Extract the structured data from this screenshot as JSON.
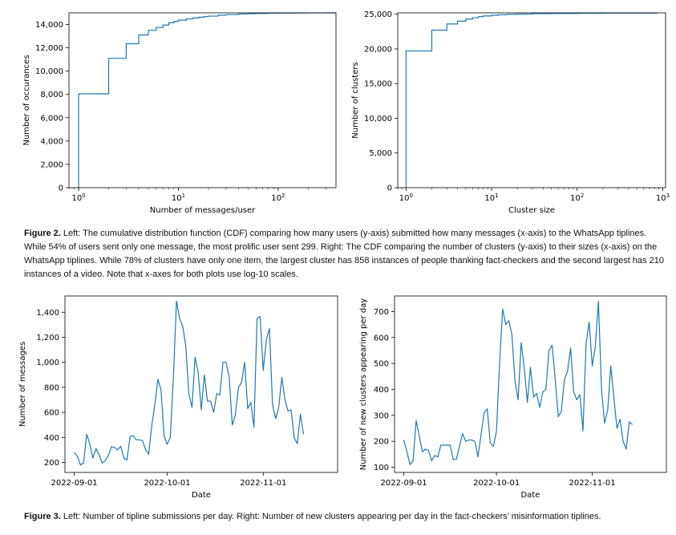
{
  "figure2": {
    "label": "Figure 2.",
    "text": " Left: The cumulative distribution function (CDF) comparing how many users (y-axis) submitted how many messages (x-axis) to the WhatsApp tiplines. While 54% of users sent only one message, the most prolific user sent 299. Right: The CDF comparing the number of clusters (y-axis) to their sizes (x-axis) on the WhatsApp tiplines. While 78% of clusters have only one item, the largest cluster has 858 instances of people thanking fact-checkers and the second largest has 210 instances of a video. Note that x-axes for both plots use log-10 scales."
  },
  "figure3": {
    "label": "Figure 3.",
    "text": " Left: Number of tipline submissions per day. Right: Number of new clusters appearing per day in the fact-checkers’ misinformation tiplines."
  },
  "chart_data": [
    {
      "id": "users-cdf",
      "type": "line",
      "step": true,
      "title": "",
      "xlabel": "Number of messages/user",
      "ylabel": "Number of occurances",
      "xscale": "log",
      "xlim": [
        0.8,
        380
      ],
      "ylim": [
        0,
        15000
      ],
      "x_ticks": [
        1,
        10,
        100
      ],
      "x_tick_labels": [
        "10^0",
        "10^1",
        "10^2"
      ],
      "y_ticks": [
        0,
        2000,
        4000,
        6000,
        8000,
        10000,
        12000,
        14000
      ],
      "y_tick_labels": [
        "0",
        "2,000",
        "4,000",
        "6,000",
        "8,000",
        "10,000",
        "12,000",
        "14,000"
      ],
      "x": [
        1,
        2,
        3,
        4,
        5,
        6,
        7,
        8,
        9,
        10,
        12,
        14,
        16,
        18,
        20,
        25,
        30,
        40,
        50,
        60,
        80,
        100,
        150,
        200,
        299,
        380
      ],
      "y": [
        8050,
        11100,
        12350,
        13100,
        13500,
        13750,
        13950,
        14150,
        14270,
        14370,
        14480,
        14560,
        14620,
        14680,
        14720,
        14800,
        14850,
        14900,
        14930,
        14950,
        14970,
        14985,
        14993,
        14997,
        15000,
        15000
      ]
    },
    {
      "id": "clusters-cdf",
      "type": "line",
      "step": true,
      "title": "",
      "xlabel": "Cluster size",
      "ylabel": "Number of clusters",
      "xscale": "log",
      "xlim": [
        0.8,
        1080
      ],
      "ylim": [
        0,
        25200
      ],
      "x_ticks": [
        1,
        10,
        100,
        1000
      ],
      "x_tick_labels": [
        "10^0",
        "10^1",
        "10^2",
        "10^3"
      ],
      "y_ticks": [
        0,
        5000,
        10000,
        15000,
        20000,
        25000
      ],
      "y_tick_labels": [
        "0",
        "5,000",
        "10,000",
        "15,000",
        "20,000",
        "25,000"
      ],
      "x": [
        1,
        2,
        3,
        4,
        5,
        6,
        7,
        8,
        10,
        12,
        15,
        20,
        30,
        50,
        100,
        210,
        858
      ],
      "y": [
        19700,
        22700,
        23600,
        24000,
        24300,
        24500,
        24650,
        24750,
        24850,
        24920,
        24980,
        25030,
        25080,
        25110,
        25140,
        25170,
        25200
      ]
    },
    {
      "id": "submissions-per-day",
      "type": "line",
      "title": "",
      "xlabel": "Date",
      "ylabel": "Number of messages",
      "x_start": "2022-08-29",
      "x_end": "2022-11-25",
      "ylim": [
        120,
        1530
      ],
      "x_ticks": [
        "2022-09-01",
        "2022-10-01",
        "2022-11-01"
      ],
      "y_ticks": [
        200,
        400,
        600,
        800,
        1000,
        1200,
        1400
      ],
      "y_tick_labels": [
        "200",
        "400",
        "600",
        "800",
        "1,000",
        "1,200",
        "1,400"
      ],
      "values": [
        280,
        250,
        180,
        195,
        425,
        350,
        235,
        310,
        265,
        195,
        215,
        255,
        325,
        320,
        300,
        330,
        235,
        220,
        405,
        415,
        380,
        380,
        375,
        305,
        265,
        490,
        660,
        865,
        780,
        410,
        345,
        400,
        880,
        1490,
        1350,
        1290,
        1130,
        745,
        640,
        1040,
        920,
        620,
        900,
        690,
        690,
        600,
        750,
        740,
        1000,
        1000,
        880,
        500,
        580,
        800,
        840,
        1000,
        630,
        680,
        480,
        1350,
        1365,
        935,
        1180,
        1270,
        660,
        550,
        640,
        880,
        700,
        610,
        620,
        395,
        350,
        585,
        425
      ]
    },
    {
      "id": "new-clusters-per-day",
      "type": "line",
      "title": "",
      "xlabel": "Date",
      "ylabel": "Number of new clusters appearing per day",
      "x_start": "2022-08-29",
      "x_end": "2022-11-25",
      "ylim": [
        80,
        760
      ],
      "x_ticks": [
        "2022-09-01",
        "2022-10-01",
        "2022-11-01"
      ],
      "y_ticks": [
        100,
        200,
        300,
        400,
        500,
        600,
        700
      ],
      "y_tick_labels": [
        "100",
        "200",
        "300",
        "400",
        "500",
        "600",
        "700"
      ],
      "values": [
        205,
        160,
        110,
        125,
        280,
        220,
        160,
        170,
        165,
        125,
        145,
        140,
        185,
        185,
        185,
        185,
        130,
        130,
        180,
        230,
        200,
        205,
        205,
        200,
        140,
        225,
        310,
        325,
        195,
        180,
        240,
        500,
        710,
        650,
        665,
        610,
        430,
        360,
        580,
        480,
        350,
        485,
        370,
        385,
        330,
        390,
        400,
        550,
        570,
        440,
        295,
        315,
        440,
        470,
        560,
        390,
        360,
        380,
        240,
        575,
        660,
        490,
        565,
        740,
        400,
        270,
        320,
        490,
        370,
        250,
        285,
        200,
        170,
        275,
        265
      ]
    }
  ]
}
